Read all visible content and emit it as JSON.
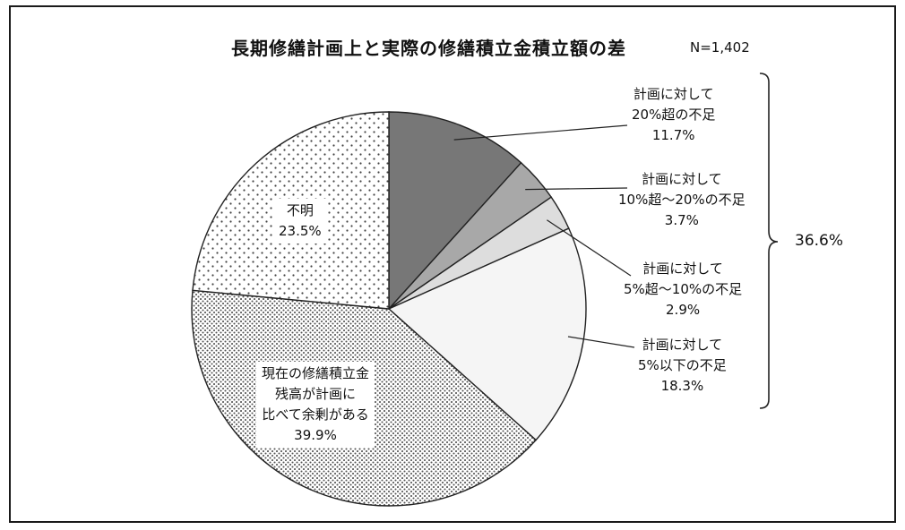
{
  "chart_data": {
    "type": "pie",
    "title": "長期修繕計画上と実際の修繕積立金積立額の差",
    "n_label": "N=1,402",
    "slices": [
      {
        "label_lines": [
          "計画に対して",
          "20%超の不足"
        ],
        "value": 11.7,
        "value_label": "11.7%",
        "color": "#777777",
        "pattern": "solid"
      },
      {
        "label_lines": [
          "計画に対して",
          "10%超～20%の不足"
        ],
        "value": 3.7,
        "value_label": "3.7%",
        "color": "#a8a8a8",
        "pattern": "solid"
      },
      {
        "label_lines": [
          "計画に対して",
          "5%超～10%の不足"
        ],
        "value": 2.9,
        "value_label": "2.9%",
        "color": "#dddddd",
        "pattern": "solid"
      },
      {
        "label_lines": [
          "計画に対して",
          "5%以下の不足"
        ],
        "value": 18.3,
        "value_label": "18.3%",
        "color": "#f5f5f5",
        "pattern": "solid"
      },
      {
        "label_lines": [
          "現在の修繕積立金",
          "残高が計画に",
          "比べて余剰がある"
        ],
        "value": 39.9,
        "value_label": "39.9%",
        "color": "#ffffff",
        "pattern": "dense-dots"
      },
      {
        "label_lines": [
          "不明"
        ],
        "value": 23.5,
        "value_label": "23.5%",
        "color": "#ffffff",
        "pattern": "sparse-dots"
      }
    ],
    "bracket_total_label": "36.6%",
    "start": "12 o'clock",
    "direction": "clockwise"
  }
}
